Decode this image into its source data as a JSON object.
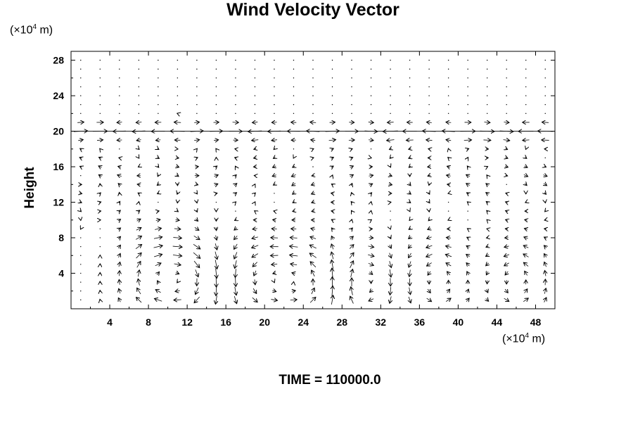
{
  "chart_data": {
    "type": "quiver",
    "title": "Wind Velocity Vector",
    "ylabel": "Height",
    "yunit": "(×10",
    "xunit": "(×10",
    "unit_exponent": "4",
    "unit_suffix": " m)",
    "time_label": "TIME = 110000.0",
    "xlim": [
      0,
      50
    ],
    "ylim": [
      0,
      29
    ],
    "xticks": [
      4,
      8,
      12,
      16,
      20,
      24,
      28,
      32,
      36,
      40,
      44,
      48
    ],
    "yticks": [
      4,
      8,
      12,
      16,
      20,
      24,
      28
    ],
    "grid": {
      "dx": 2,
      "dy": 1
    },
    "cells": [
      {
        "center_x": 8.4,
        "center_y": 3.5,
        "rx": 3.2,
        "ry": 4.5,
        "dir": -1
      },
      {
        "center_x": 12.2,
        "center_y": 3.0,
        "rx": 3.0,
        "ry": 5.0,
        "dir": -1
      },
      {
        "center_x": 20.0,
        "center_y": 3.2,
        "rx": 3.6,
        "ry": 5.0,
        "dir": 1
      },
      {
        "center_x": 24.5,
        "center_y": 3.0,
        "rx": 3.0,
        "ry": 5.0,
        "dir": 1
      },
      {
        "center_x": 30.5,
        "center_y": 3.0,
        "rx": 2.6,
        "ry": 4.5,
        "dir": -1
      },
      {
        "center_x": 38.0,
        "center_y": 3.0,
        "rx": 3.2,
        "ry": 4.5,
        "dir": 1
      },
      {
        "center_x": 46.0,
        "center_y": 3.0,
        "rx": 3.0,
        "ry": 4.0,
        "dir": 1
      }
    ],
    "jet": {
      "y": 20,
      "u": 1.8
    },
    "colors": {
      "axes": "#000000",
      "arrows": "#000000",
      "background": "#ffffff"
    }
  }
}
